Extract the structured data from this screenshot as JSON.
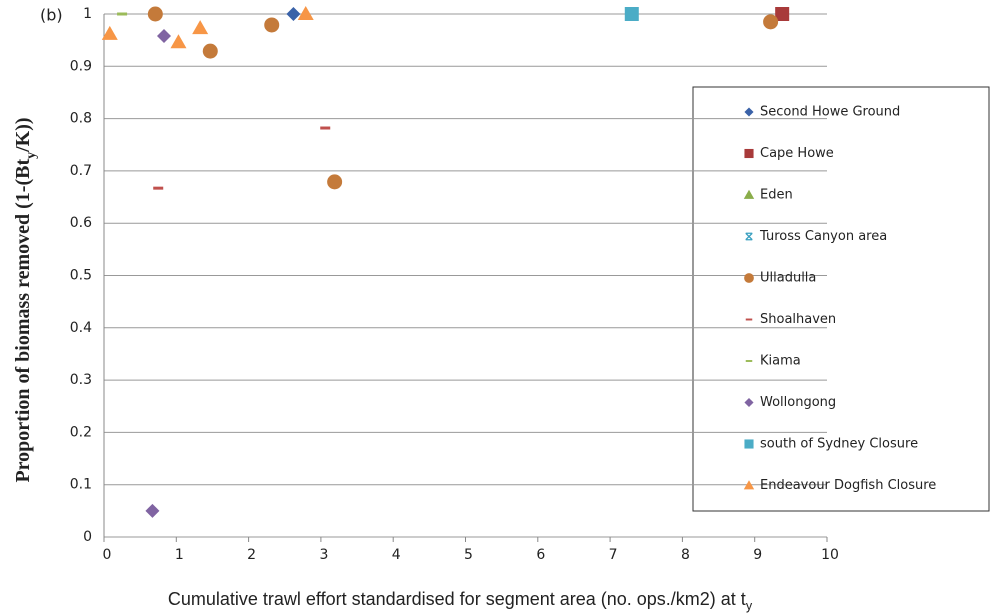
{
  "chart_data": {
    "type": "scatter",
    "annotation": "(b)",
    "ylabel_parts": [
      "Proportion of biomass removed (1-(Bt",
      "y",
      "/K))"
    ],
    "xlabel_parts": [
      "Cumulative trawl effort standardised  for segment area (no. ops./km2) at t",
      "y"
    ],
    "xlim": [
      0,
      10
    ],
    "xticks": [
      0,
      1,
      2,
      3,
      4,
      5,
      6,
      7,
      8,
      9,
      10
    ],
    "ylim": [
      0,
      1
    ],
    "yticks": [
      0,
      0.1,
      0.2,
      0.3,
      0.4,
      0.5,
      0.6,
      0.7,
      0.8,
      0.9,
      1
    ],
    "grid": true,
    "legend": "right",
    "series": [
      {
        "name": "Second Howe Ground",
        "color": "#3a62a8",
        "marker": "diamond",
        "x": [
          2.62
        ],
        "values": [
          1.0
        ]
      },
      {
        "name": "Cape Howe",
        "color": "#a83a3a",
        "marker": "square",
        "x": [
          9.38
        ],
        "values": [
          1.0
        ]
      },
      {
        "name": "Eden",
        "color": "#8aad4a",
        "marker": "triangle",
        "x": [],
        "values": []
      },
      {
        "name": "Tuross Canyon area",
        "color": "#3aa0c0",
        "marker": "star",
        "x": [],
        "values": []
      },
      {
        "name": "Ulladulla",
        "color": "#c47a3a",
        "marker": "circle",
        "x": [
          0.71,
          2.32,
          1.47,
          3.19,
          9.22
        ],
        "values": [
          1.0,
          0.979,
          0.929,
          0.679,
          0.985
        ]
      },
      {
        "name": "Shoalhaven",
        "color": "#c0504d",
        "marker": "dash",
        "x": [
          0.75,
          3.06
        ],
        "values": [
          0.667,
          0.782
        ]
      },
      {
        "name": "Kiama",
        "color": "#9bbb59",
        "marker": "dash",
        "x": [
          0.25
        ],
        "values": [
          1.0
        ]
      },
      {
        "name": "Wollongong",
        "color": "#8064a2",
        "marker": "diamond",
        "x": [
          0.83,
          0.67
        ],
        "values": [
          0.958,
          0.05
        ]
      },
      {
        "name": "south of Sydney Closure",
        "color": "#4bacc6",
        "marker": "square",
        "x": [
          7.3
        ],
        "values": [
          1.0
        ]
      },
      {
        "name": "Endeavour Dogfish Closure",
        "color": "#f79646",
        "marker": "triangle",
        "x": [
          0.08,
          1.03,
          1.33,
          2.79
        ],
        "values": [
          0.962,
          0.946,
          0.973,
          1.0
        ]
      }
    ]
  }
}
